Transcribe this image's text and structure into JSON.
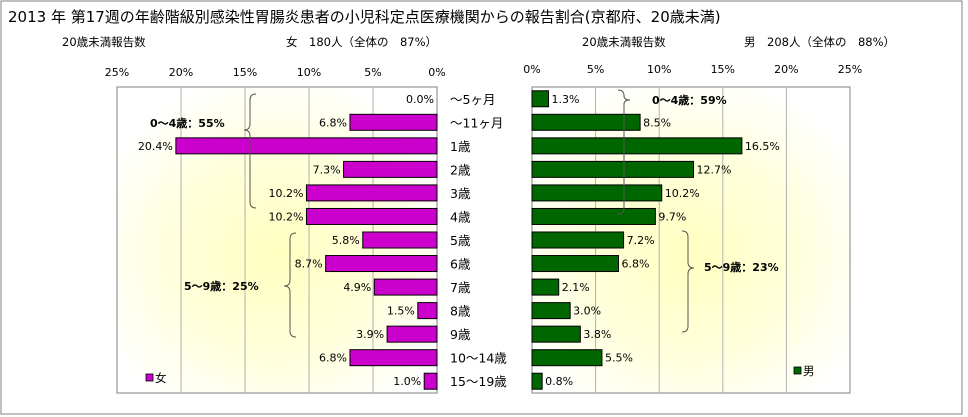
{
  "title": "2013 年 第17週の年齢階級別感染性胃腸炎患者の小児科定点医療機関からの報告割合(京都府、20歳未満)",
  "age_groups": [
    "～5ヶ月",
    "～11ヶ月",
    "1歳",
    "2歳",
    "3歳",
    "4歳",
    "5歳",
    "6歳",
    "7歳",
    "8歳",
    "9歳",
    "10～14歳",
    "15～19歳"
  ],
  "female": {
    "header_label": "20歳未満報告数",
    "header_count": "女　180人（全体の　87%）",
    "legend": "女",
    "color": "#cc00cc",
    "bracket_0_4": "0～4歳：55%",
    "bracket_5_9": "5～9歳：25%"
  },
  "male": {
    "header_label": "20歳未満報告数",
    "header_count": "男　208人（全体の　88%）",
    "legend": "男",
    "color": "#006600",
    "bracket_0_4": "0～4歳：59%",
    "bracket_5_9": "5～9歳：23%"
  },
  "chart_data": [
    {
      "type": "bar",
      "orientation": "horizontal",
      "x_reversed": true,
      "categories": [
        "～5ヶ月",
        "～11ヶ月",
        "1歳",
        "2歳",
        "3歳",
        "4歳",
        "5歳",
        "6歳",
        "7歳",
        "8歳",
        "9歳",
        "10～14歳",
        "15～19歳"
      ],
      "series": [
        {
          "name": "女",
          "values": [
            0.0,
            6.8,
            20.4,
            7.3,
            10.2,
            10.2,
            5.8,
            8.7,
            4.9,
            1.5,
            3.9,
            6.8,
            1.0
          ]
        }
      ],
      "data_labels": [
        "0.0%",
        "6.8%",
        "20.4%",
        "7.3%",
        "10.2%",
        "10.2%",
        "5.8%",
        "8.7%",
        "4.9%",
        "1.5%",
        "3.9%",
        "6.8%",
        "1.0%"
      ],
      "xlim": [
        0,
        25
      ],
      "x_ticks": [
        "25%",
        "20%",
        "15%",
        "10%",
        "5%",
        "0%"
      ],
      "grid": true,
      "legend": "bottom-left"
    },
    {
      "type": "bar",
      "orientation": "horizontal",
      "categories": [
        "～5ヶ月",
        "～11ヶ月",
        "1歳",
        "2歳",
        "3歳",
        "4歳",
        "5歳",
        "6歳",
        "7歳",
        "8歳",
        "9歳",
        "10～14歳",
        "15～19歳"
      ],
      "series": [
        {
          "name": "男",
          "values": [
            1.3,
            8.5,
            16.5,
            12.7,
            10.2,
            9.7,
            7.2,
            6.8,
            2.1,
            3.0,
            3.8,
            5.5,
            0.8
          ]
        }
      ],
      "data_labels": [
        "1.3%",
        "8.5%",
        "16.5%",
        "12.7%",
        "10.2%",
        "9.7%",
        "7.2%",
        "6.8%",
        "2.1%",
        "3.0%",
        "3.8%",
        "5.5%",
        "0.8%"
      ],
      "xlim": [
        0,
        25
      ],
      "x_ticks": [
        "0%",
        "5%",
        "10%",
        "15%",
        "20%",
        "25%"
      ],
      "grid": true,
      "legend": "bottom-left"
    }
  ]
}
